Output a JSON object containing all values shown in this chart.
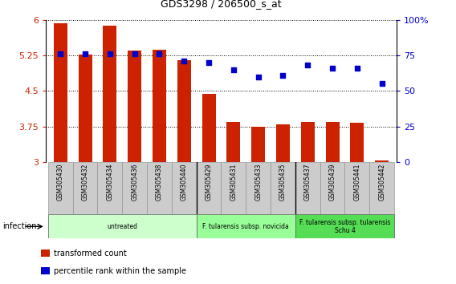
{
  "title": "GDS3298 / 206500_s_at",
  "samples": [
    "GSM305430",
    "GSM305432",
    "GSM305434",
    "GSM305436",
    "GSM305438",
    "GSM305440",
    "GSM305429",
    "GSM305431",
    "GSM305433",
    "GSM305435",
    "GSM305437",
    "GSM305439",
    "GSM305441",
    "GSM305442"
  ],
  "bar_values": [
    5.93,
    5.27,
    5.88,
    5.35,
    5.37,
    5.15,
    4.44,
    3.85,
    3.75,
    3.79,
    3.85,
    3.84,
    3.82,
    3.03
  ],
  "percentile_values": [
    76,
    76,
    76,
    76,
    76,
    71,
    70,
    65,
    60,
    61,
    68,
    66,
    66,
    55
  ],
  "bar_color": "#cc2200",
  "dot_color": "#0000cc",
  "ylim": [
    3.0,
    6.0
  ],
  "yticks": [
    3.0,
    3.75,
    4.5,
    5.25,
    6.0
  ],
  "ylim_right": [
    0,
    100
  ],
  "yticks_right": [
    0,
    25,
    50,
    75,
    100
  ],
  "ytick_labels_right": [
    "0",
    "25",
    "50",
    "75",
    "100%"
  ],
  "groups": [
    {
      "label": "untreated",
      "start": 0,
      "end": 6,
      "color": "#ccffcc"
    },
    {
      "label": "F. tularensis subsp. novicida",
      "start": 6,
      "end": 10,
      "color": "#99ff99"
    },
    {
      "label": "F. tularensis subsp. tularensis\nSchu 4",
      "start": 10,
      "end": 14,
      "color": "#55dd55"
    }
  ],
  "tick_color_left": "#cc2200",
  "tick_color_right": "#0000cc",
  "background_color": "#ffffff",
  "group_dividers": [
    5.5,
    9.5
  ]
}
